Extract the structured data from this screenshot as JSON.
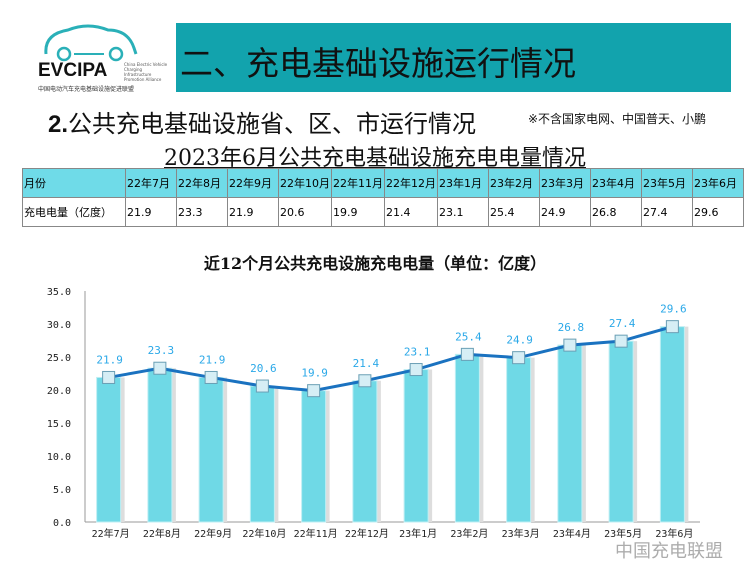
{
  "logo": {
    "name": "EVCIPA",
    "en": "China Electric Vehicle Charging Infrastructure Promotion Alliance",
    "cn": "中国电动汽车充电基础设施促进联盟"
  },
  "header": {
    "title": "二、充电基础设施运行情况"
  },
  "section": {
    "number": "2.",
    "title": "公共充电基础设施省、区、市运行情况",
    "note": "※不含国家电网、中国普天、小鹏"
  },
  "table": {
    "title": "2023年6月公共充电基础设施充电电量情况",
    "row_headers": [
      "月份",
      "充电电量（亿度）"
    ],
    "months": [
      "22年7月",
      "22年8月",
      "22年9月",
      "22年10月",
      "22年11月",
      "22年12月",
      "23年1月",
      "23年2月",
      "23年3月",
      "23年4月",
      "23年5月",
      "23年6月"
    ],
    "values": [
      "21.9",
      "23.3",
      "21.9",
      "20.6",
      "19.9",
      "21.4",
      "23.1",
      "25.4",
      "24.9",
      "26.8",
      "27.4",
      "29.6"
    ]
  },
  "watermark": "中国充电联盟",
  "chart_data": {
    "type": "bar+line",
    "title": "近12个月公共充电设施充电电量（单位：亿度）",
    "categories": [
      "22年7月",
      "22年8月",
      "22年9月",
      "22年10月",
      "22年11月",
      "22年12月",
      "23年1月",
      "23年2月",
      "23年3月",
      "23年4月",
      "23年5月",
      "23年6月"
    ],
    "values": [
      21.9,
      23.3,
      21.9,
      20.6,
      19.9,
      21.4,
      23.1,
      25.4,
      24.9,
      26.8,
      27.4,
      29.6
    ],
    "ylim": [
      0,
      35
    ],
    "yticks": [
      "0.0",
      "5.0",
      "10.0",
      "15.0",
      "20.0",
      "25.0",
      "30.0",
      "35.0"
    ],
    "grid": false,
    "colors": {
      "bar": "#6fd9e6",
      "line": "#1a72c0",
      "label": "#2aa8e8"
    }
  }
}
